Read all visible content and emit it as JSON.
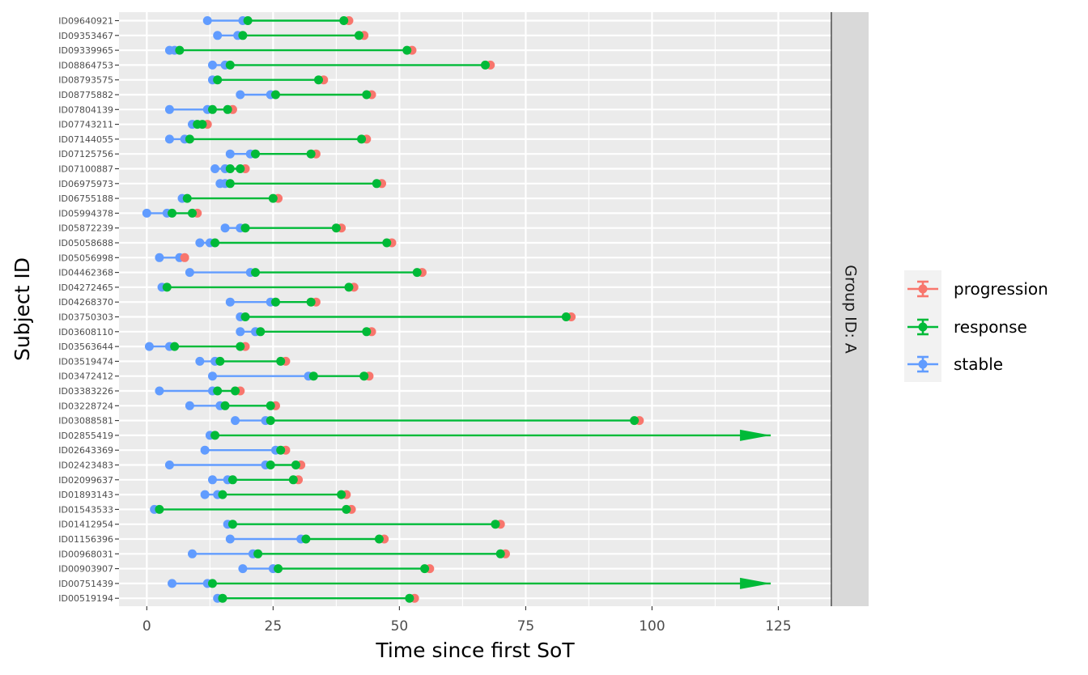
{
  "colors": {
    "progression": "#F8766D",
    "response": "#00BA38",
    "stable": "#619CFF",
    "panel_bg": "#EBEBEB",
    "grid": "#FFFFFF",
    "strip_bg": "#D9D9D9"
  },
  "chart_data": {
    "type": "swimmer",
    "xlabel": "Time since first SoT",
    "ylabel": "Subject ID",
    "facet_label": "Group ID: A",
    "xlim": [
      -5.5,
      135.5
    ],
    "xticks": [
      0,
      25,
      50,
      75,
      100,
      125
    ],
    "grid": true,
    "legend": {
      "position": "right",
      "entries": [
        "progression",
        "response",
        "stable"
      ]
    },
    "subjects": [
      {
        "id": "ID09640921",
        "stable": 12,
        "stable2": 19,
        "response": 20,
        "response2": 39,
        "progression": 40,
        "ongoing": false
      },
      {
        "id": "ID09353467",
        "stable": 14,
        "stable2": 18,
        "response": 19,
        "response2": 42,
        "progression": 43,
        "ongoing": false
      },
      {
        "id": "ID09339965",
        "stable": 4.5,
        "stable2": 5.5,
        "response": 6.5,
        "response2": 51.5,
        "progression": 52.5,
        "ongoing": false
      },
      {
        "id": "ID08864753",
        "stable": 13,
        "stable2": 15.5,
        "response": 16.5,
        "response2": 67,
        "progression": 68,
        "ongoing": false
      },
      {
        "id": "ID08793575",
        "stable": 13,
        "stable2": null,
        "response": 14,
        "response2": 34,
        "progression": 35,
        "ongoing": false
      },
      {
        "id": "ID08775882",
        "stable": 18.5,
        "stable2": 24.5,
        "response": 25.5,
        "response2": 43.5,
        "progression": 44.5,
        "ongoing": false
      },
      {
        "id": "ID07804139",
        "stable": 4.5,
        "stable2": 12,
        "response": 13,
        "response2": 16,
        "progression": 17,
        "ongoing": false
      },
      {
        "id": "ID07743211",
        "stable": 9,
        "stable2": null,
        "response": 10,
        "response2": 11,
        "progression": 12,
        "ongoing": false
      },
      {
        "id": "ID07144055",
        "stable": 4.5,
        "stable2": 7.5,
        "response": 8.5,
        "response2": 42.5,
        "progression": 43.5,
        "ongoing": false
      },
      {
        "id": "ID07125756",
        "stable": 16.5,
        "stable2": 20.5,
        "response": 21.5,
        "response2": 32.5,
        "progression": 33.5,
        "ongoing": false
      },
      {
        "id": "ID07100887",
        "stable": 13.5,
        "stable2": 15.5,
        "response": 16.5,
        "response2": 18.5,
        "progression": 19.5,
        "ongoing": false
      },
      {
        "id": "ID06975973",
        "stable": 14.5,
        "stable2": 15.5,
        "response": 16.5,
        "response2": 45.5,
        "progression": 46.5,
        "ongoing": false
      },
      {
        "id": "ID06755188",
        "stable": 7,
        "stable2": null,
        "response": 8,
        "response2": 25,
        "progression": 26,
        "ongoing": false
      },
      {
        "id": "ID05994378",
        "stable": 0,
        "stable2": 4,
        "response": 5,
        "response2": 9,
        "progression": 10,
        "ongoing": false
      },
      {
        "id": "ID05872239",
        "stable": 15.5,
        "stable2": 18.5,
        "response": 19.5,
        "response2": 37.5,
        "progression": 38.5,
        "ongoing": false
      },
      {
        "id": "ID05058688",
        "stable": 10.5,
        "stable2": 12.5,
        "response": 13.5,
        "response2": 47.5,
        "progression": 48.5,
        "ongoing": false
      },
      {
        "id": "ID05056998",
        "stable": 2.5,
        "stable2": 6.5,
        "response": null,
        "response2": null,
        "progression": 7.5,
        "ongoing": false
      },
      {
        "id": "ID04462368",
        "stable": 8.5,
        "stable2": 20.5,
        "response": 21.5,
        "response2": 53.5,
        "progression": 54.5,
        "ongoing": false
      },
      {
        "id": "ID04272465",
        "stable": 3,
        "stable2": null,
        "response": 4,
        "response2": 40,
        "progression": 41,
        "ongoing": false
      },
      {
        "id": "ID04268370",
        "stable": 16.5,
        "stable2": 24.5,
        "response": 25.5,
        "response2": 32.5,
        "progression": 33.5,
        "ongoing": false
      },
      {
        "id": "ID03750303",
        "stable": 18.5,
        "stable2": null,
        "response": 19.5,
        "response2": 83,
        "progression": 84,
        "ongoing": false
      },
      {
        "id": "ID03608110",
        "stable": 18.5,
        "stable2": 21.5,
        "response": 22.5,
        "response2": 43.5,
        "progression": 44.5,
        "ongoing": false
      },
      {
        "id": "ID03563644",
        "stable": 0.5,
        "stable2": 4.5,
        "response": 5.5,
        "response2": 18.5,
        "progression": 19.5,
        "ongoing": false
      },
      {
        "id": "ID03519474",
        "stable": 10.5,
        "stable2": 13.5,
        "response": 14.5,
        "response2": 26.5,
        "progression": 27.5,
        "ongoing": false
      },
      {
        "id": "ID03472412",
        "stable": 13,
        "stable2": 32,
        "response": 33,
        "response2": 43,
        "progression": 44,
        "ongoing": false
      },
      {
        "id": "ID03383226",
        "stable": 2.5,
        "stable2": 13,
        "response": 14,
        "response2": 17.5,
        "progression": 18.5,
        "ongoing": false
      },
      {
        "id": "ID03228724",
        "stable": 8.5,
        "stable2": 14.5,
        "response": 15.5,
        "response2": 24.5,
        "progression": 25.5,
        "ongoing": false
      },
      {
        "id": "ID03088581",
        "stable": 17.5,
        "stable2": 23.5,
        "response": 24.5,
        "response2": 96.5,
        "progression": 97.5,
        "ongoing": false
      },
      {
        "id": "ID02855419",
        "stable": 12.5,
        "stable2": null,
        "response": 13.5,
        "response2": null,
        "progression": null,
        "ongoing": true,
        "end": 123.5
      },
      {
        "id": "ID02643369",
        "stable": 11.5,
        "stable2": 25.5,
        "response": 26.5,
        "response2": null,
        "progression": 27.5,
        "ongoing": false
      },
      {
        "id": "ID02423483",
        "stable": 4.5,
        "stable2": 23.5,
        "response": 24.5,
        "response2": 29.5,
        "progression": 30.5,
        "ongoing": false
      },
      {
        "id": "ID02099637",
        "stable": 13,
        "stable2": 16,
        "response": 17,
        "response2": 29,
        "progression": 30,
        "ongoing": false
      },
      {
        "id": "ID01893143",
        "stable": 11.5,
        "stable2": 14,
        "response": 15,
        "response2": 38.5,
        "progression": 39.5,
        "ongoing": false
      },
      {
        "id": "ID01543533",
        "stable": 1.5,
        "stable2": null,
        "response": 2.5,
        "response2": 39.5,
        "progression": 40.5,
        "ongoing": false
      },
      {
        "id": "ID01412954",
        "stable": 16,
        "stable2": null,
        "response": 17,
        "response2": 69,
        "progression": 70,
        "ongoing": false
      },
      {
        "id": "ID01156396",
        "stable": 16.5,
        "stable2": 30.5,
        "response": 31.5,
        "response2": 46,
        "progression": 47,
        "ongoing": false
      },
      {
        "id": "ID00968031",
        "stable": 9,
        "stable2": 21,
        "response": 22,
        "response2": 70,
        "progression": 71,
        "ongoing": false
      },
      {
        "id": "ID00903907",
        "stable": 19,
        "stable2": 25,
        "response": 26,
        "response2": 55,
        "progression": 56,
        "ongoing": false
      },
      {
        "id": "ID00751439",
        "stable": 5,
        "stable2": 12,
        "response": 13,
        "response2": null,
        "progression": null,
        "ongoing": true,
        "end": 123.5
      },
      {
        "id": "ID00519194",
        "stable": 14,
        "stable2": null,
        "response": 15,
        "response2": 52,
        "progression": 53,
        "ongoing": false
      }
    ]
  }
}
